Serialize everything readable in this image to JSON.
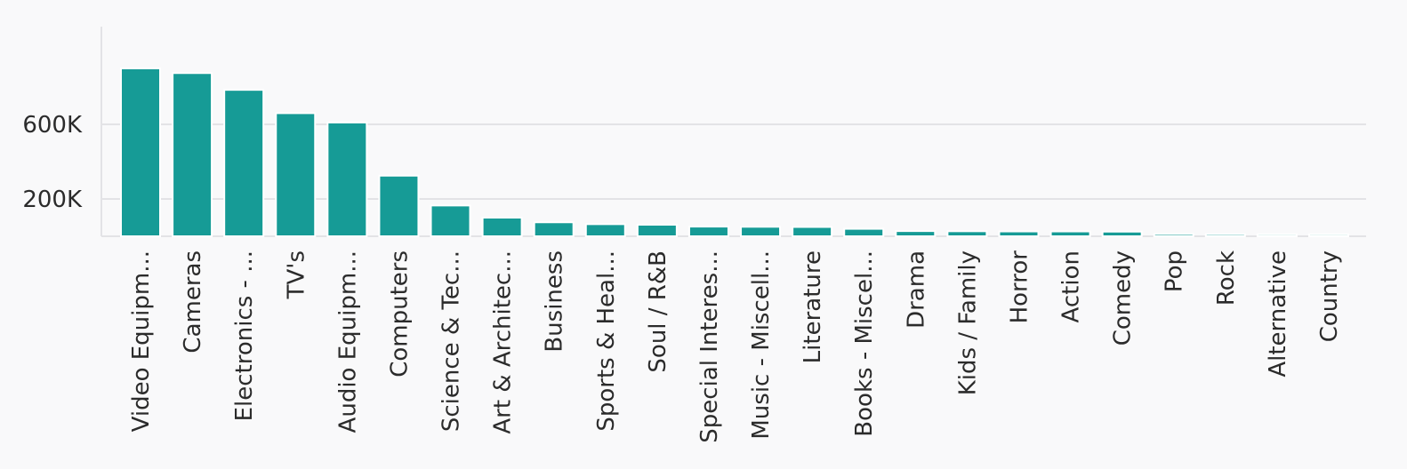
{
  "chart_data": {
    "type": "bar",
    "title": "",
    "xlabel": "",
    "ylabel": "",
    "categories": [
      "Video Equipm...",
      "Cameras",
      "Electronics - ...",
      "TV's",
      "Audio Equipm...",
      "Computers",
      "Science & Tec...",
      "Art & Architec...",
      "Business",
      "Sports & Heal...",
      "Soul / R&B",
      "Special Interes...",
      "Music - Miscell...",
      "Literature",
      "Books - Miscel...",
      "Drama",
      "Kids / Family",
      "Horror",
      "Action",
      "Comedy",
      "Pop",
      "Rock",
      "Alternative",
      "Country"
    ],
    "values": [
      900000,
      875000,
      785000,
      660000,
      610000,
      325000,
      165000,
      100000,
      75000,
      65000,
      62000,
      52000,
      51000,
      50000,
      40000,
      28000,
      27000,
      26000,
      26000,
      25000,
      12000,
      11000,
      10000,
      10000
    ],
    "ylim": [
      0,
      1100000
    ],
    "y_ticks": [
      {
        "value": 200000,
        "label": "200K"
      },
      {
        "value": 600000,
        "label": "600K"
      }
    ],
    "grid": true,
    "bar_color": "#169b96",
    "grid_color": "#e3e3e6"
  }
}
